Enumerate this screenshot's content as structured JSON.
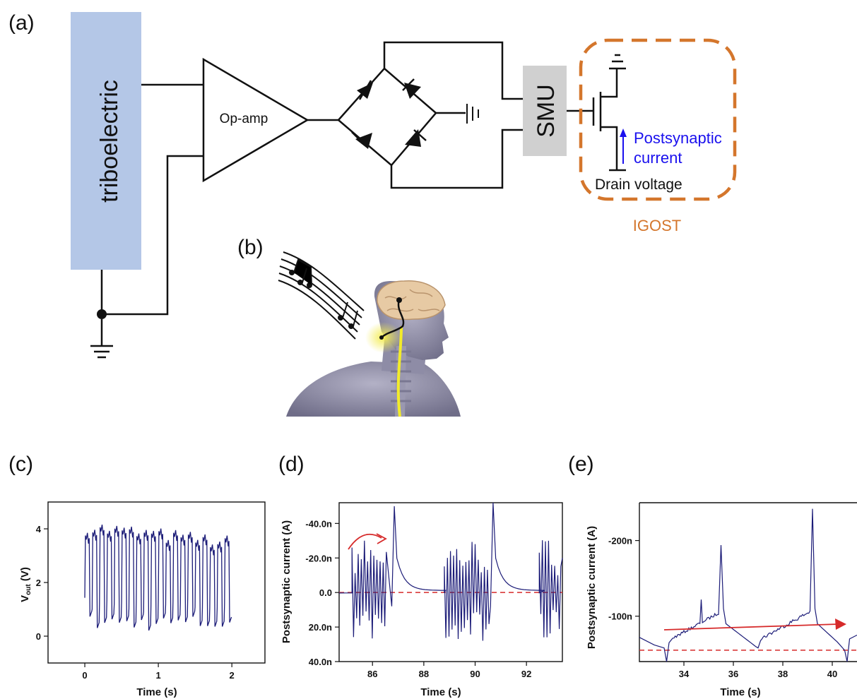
{
  "panels": {
    "a": "(a)",
    "b": "(b)",
    "c": "(c)",
    "d": "(d)",
    "e": "(e)"
  },
  "circuit": {
    "triboelectric": "triboelectric",
    "opamp": "Op-amp",
    "smu": "SMU",
    "postsynaptic_line1": "Postsynaptic",
    "postsynaptic_line2": "current",
    "drain": "Drain voltage",
    "igost": "IGOST"
  },
  "colors": {
    "tribo_box": "#b4c7e7",
    "smu_box": "#d0d0d0",
    "igost": "#d4762c",
    "postsynaptic": "#1a10ee",
    "trace": "#1c1c78",
    "guide": "#d62a2a"
  },
  "icons": {
    "ear_brain": "human-head-brain-music-illustration"
  },
  "chart_data": [
    {
      "type": "line",
      "panel": "(c)",
      "xlabel": "Time (s)",
      "ylabel_main": "V",
      "ylabel_sub": "out",
      "ylabel_unit": " (V)",
      "xlim": [
        -0.5,
        2.45
      ],
      "ylim": [
        -1,
        5
      ],
      "xticks": [
        0,
        1,
        2
      ],
      "xtick_labels": [
        "0",
        "1",
        "2"
      ],
      "yticks": [
        0,
        2,
        4
      ],
      "ytick_labels": [
        "0",
        "2",
        "4"
      ],
      "signal": {
        "start": 0,
        "end": 2,
        "cycles": 20,
        "high": 4.0,
        "low": 0.3
      }
    },
    {
      "type": "line",
      "panel": "(d)",
      "xlabel": "Time (s)",
      "ylabel": "Postsynaptic current (A)",
      "xlim": [
        84.7,
        93.4
      ],
      "ylim": [
        40,
        -52
      ],
      "xticks": [
        86,
        88,
        90,
        92
      ],
      "xtick_labels": [
        "86",
        "88",
        "90",
        "92"
      ],
      "yticks": [
        -40,
        -20,
        0,
        20,
        40
      ],
      "ytick_labels": [
        "-40.0n",
        "-20.0n",
        "0.0",
        "20.0n",
        "40.0n"
      ],
      "baseline": 0,
      "bursts": [
        {
          "start": 85.2,
          "end": 86.6,
          "peak_time": 86.85,
          "peak": -50
        },
        {
          "start": 88.8,
          "end": 90.6,
          "peak_time": 90.7,
          "peak": -52
        },
        {
          "start": 92.5,
          "end": 93.4,
          "peak_time": null,
          "peak": -24
        }
      ]
    },
    {
      "type": "line",
      "panel": "(e)",
      "xlabel": "Time (s)",
      "ylabel": "Postsynaptic current (A)",
      "xlim": [
        32.2,
        41.0
      ],
      "ylim": [
        -40,
        -250
      ],
      "xticks": [
        34,
        36,
        38,
        40
      ],
      "xtick_labels": [
        "34",
        "36",
        "38",
        "40"
      ],
      "yticks": [
        -200,
        -100
      ],
      "ytick_labels": [
        "-200n",
        "-100n"
      ],
      "baseline": -55,
      "spikes": [
        {
          "t": 34.7,
          "peak": -122
        },
        {
          "t": 35.5,
          "peak": -194
        },
        {
          "t": 39.2,
          "peak": -242
        }
      ]
    }
  ]
}
